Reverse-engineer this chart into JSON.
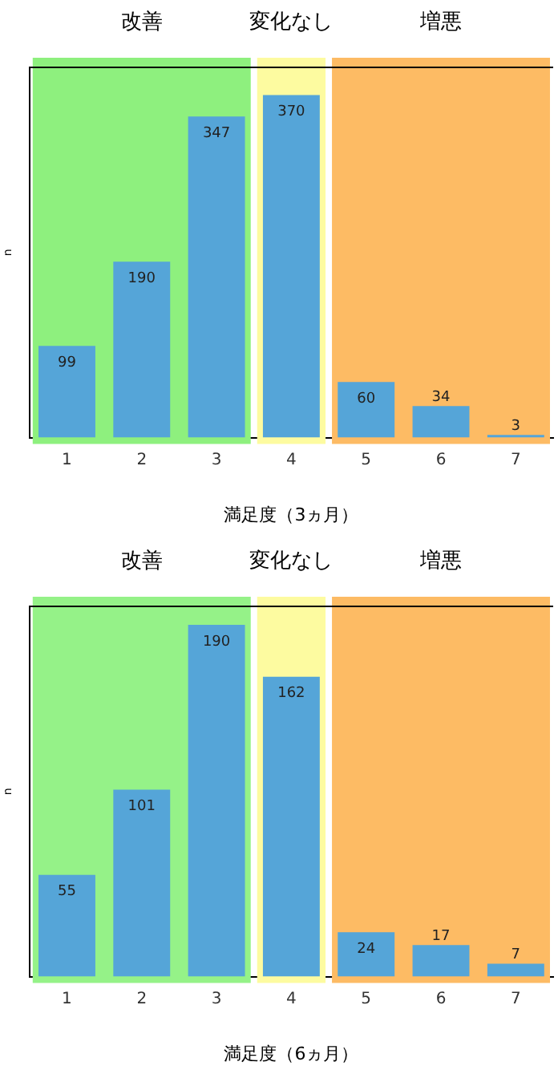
{
  "chart_data": [
    {
      "type": "bar",
      "xlabel": "満足度（3ヵ月）",
      "ylabel": "n",
      "categories": [
        "1",
        "2",
        "3",
        "4",
        "5",
        "6",
        "7"
      ],
      "values": [
        99,
        190,
        347,
        370,
        60,
        34,
        3
      ],
      "color": "#55a5d8",
      "data_labels": true,
      "grid": false,
      "legend": false,
      "bands": [
        {
          "axis": "x",
          "from": "1",
          "to": "3",
          "label": "改善",
          "color": "#8ef07e"
        },
        {
          "axis": "x",
          "from": "4",
          "to": "4",
          "label": "変化なし",
          "color": "#fdfba0"
        },
        {
          "axis": "x",
          "from": "5",
          "to": "7",
          "label": "増悪",
          "color": "#fdbb64"
        }
      ]
    },
    {
      "type": "bar",
      "xlabel": "満足度（6ヵ月）",
      "ylabel": "n",
      "categories": [
        "1",
        "2",
        "3",
        "4",
        "5",
        "6",
        "7"
      ],
      "values": [
        55,
        101,
        190,
        162,
        24,
        17,
        7
      ],
      "color": "#55a5d8",
      "data_labels": true,
      "grid": false,
      "legend": false,
      "bands": [
        {
          "axis": "x",
          "from": "1",
          "to": "3",
          "label": "改善",
          "color": "#95f288"
        },
        {
          "axis": "x",
          "from": "4",
          "to": "4",
          "label": "変化なし",
          "color": "#fdfba0"
        },
        {
          "axis": "x",
          "from": "5",
          "to": "7",
          "label": "増悪",
          "color": "#fdbb64"
        }
      ]
    }
  ]
}
